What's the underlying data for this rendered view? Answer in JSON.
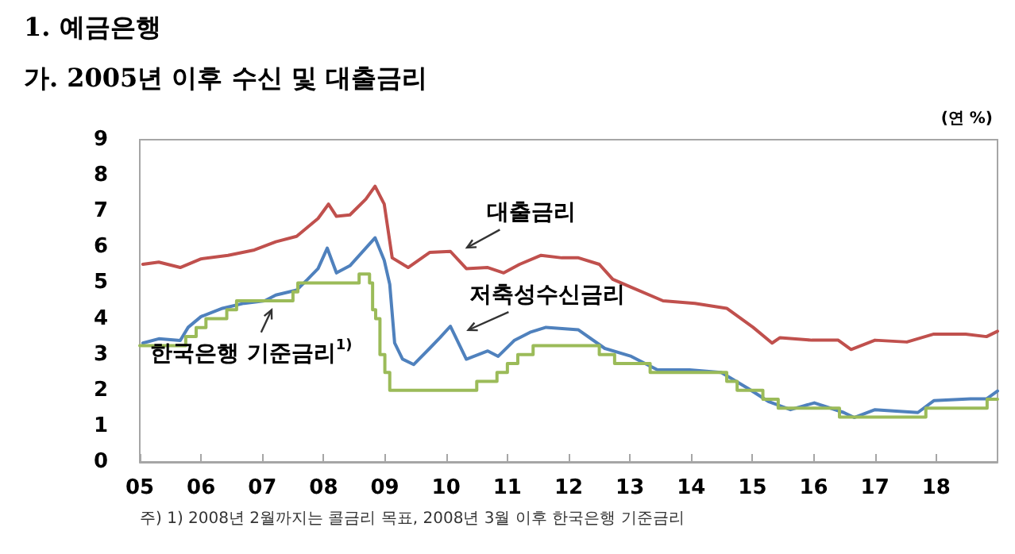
{
  "chart_data": {
    "type": "line",
    "title": "1. 예금은행",
    "subtitle": "가. 2005년 이후 수신 및 대출금리",
    "ylabel": "(연 %)",
    "xlim": [
      2005,
      2019
    ],
    "xticks": [
      {
        "value": 2005,
        "label": "05"
      },
      {
        "value": 2006,
        "label": "06"
      },
      {
        "value": 2007,
        "label": "07"
      },
      {
        "value": 2008,
        "label": "08"
      },
      {
        "value": 2009,
        "label": "09"
      },
      {
        "value": 2010,
        "label": "10"
      },
      {
        "value": 2011,
        "label": "11"
      },
      {
        "value": 2012,
        "label": "12"
      },
      {
        "value": 2013,
        "label": "13"
      },
      {
        "value": 2014,
        "label": "14"
      },
      {
        "value": 2015,
        "label": "15"
      },
      {
        "value": 2016,
        "label": "16"
      },
      {
        "value": 2017,
        "label": "17"
      },
      {
        "value": 2018,
        "label": "18"
      }
    ],
    "ylim": [
      0,
      9
    ],
    "yticks": [
      0,
      1,
      2,
      3,
      4,
      5,
      6,
      7,
      8,
      9
    ],
    "grid": false,
    "marker": "none",
    "line_style": "solid",
    "series": [
      {
        "color": "#c0504d",
        "x": [
          2005.05,
          2005.31,
          2005.66,
          2006.0,
          2006.44,
          2006.87,
          2007.22,
          2007.56,
          2007.91,
          2008.08,
          2008.21,
          2008.43,
          2008.69,
          2008.84,
          2008.99,
          2009.12,
          2009.38,
          2009.73,
          2010.07,
          2010.33,
          2010.68,
          2010.94,
          2011.2,
          2011.55,
          2011.89,
          2012.16,
          2012.5,
          2012.72,
          2013.02,
          2013.54,
          2014.06,
          2014.58,
          2015.01,
          2015.32,
          2015.45,
          2015.97,
          2016.4,
          2016.61,
          2017.0,
          2017.52,
          2017.96,
          2018.48,
          2018.82,
          2019.0
        ],
        "values": [
          5.52,
          5.58,
          5.43,
          5.67,
          5.77,
          5.92,
          6.15,
          6.3,
          6.8,
          7.2,
          6.86,
          6.9,
          7.34,
          7.7,
          7.2,
          5.7,
          5.43,
          5.85,
          5.88,
          5.4,
          5.43,
          5.28,
          5.52,
          5.77,
          5.7,
          5.7,
          5.52,
          5.1,
          4.88,
          4.5,
          4.43,
          4.29,
          3.76,
          3.32,
          3.47,
          3.4,
          3.4,
          3.14,
          3.4,
          3.35,
          3.57,
          3.57,
          3.5,
          3.65
        ]
      },
      {
        "color": "#4f81bd",
        "x": [
          2005.05,
          2005.31,
          2005.66,
          2005.79,
          2006.0,
          2006.35,
          2006.7,
          2007.04,
          2007.22,
          2007.56,
          2007.74,
          2007.91,
          2008.06,
          2008.21,
          2008.43,
          2008.84,
          2008.99,
          2009.08,
          2009.16,
          2009.29,
          2009.47,
          2009.73,
          2009.9,
          2010.07,
          2010.33,
          2010.68,
          2010.85,
          2011.11,
          2011.37,
          2011.63,
          2012.16,
          2012.59,
          2013.02,
          2013.45,
          2013.97,
          2014.49,
          2014.93,
          2015.27,
          2015.62,
          2016.01,
          2016.49,
          2016.66,
          2017.0,
          2017.7,
          2017.96,
          2018.56,
          2018.82,
          2019.0
        ],
        "values": [
          3.32,
          3.44,
          3.39,
          3.76,
          4.06,
          4.29,
          4.43,
          4.5,
          4.66,
          4.8,
          5.1,
          5.4,
          5.97,
          5.28,
          5.48,
          6.26,
          5.63,
          4.96,
          3.32,
          2.87,
          2.72,
          3.17,
          3.47,
          3.79,
          2.87,
          3.1,
          2.95,
          3.39,
          3.62,
          3.76,
          3.69,
          3.17,
          2.95,
          2.57,
          2.57,
          2.5,
          2.05,
          1.68,
          1.46,
          1.65,
          1.38,
          1.24,
          1.46,
          1.38,
          1.71,
          1.76,
          1.76,
          1.98
        ]
      },
      {
        "type": "step",
        "color": "#9bbb59",
        "x": [
          2005.0,
          2005.75,
          2005.92,
          2006.08,
          2006.42,
          2006.58,
          2007.5,
          2007.58,
          2008.58,
          2008.75,
          2008.8,
          2008.85,
          2008.92,
          2009.0,
          2009.08,
          2010.5,
          2010.83,
          2011.0,
          2011.17,
          2011.42,
          2012.5,
          2012.75,
          2013.33,
          2014.58,
          2014.75,
          2015.17,
          2015.42,
          2016.42,
          2017.83,
          2018.83,
          2019.0
        ],
        "values": [
          3.25,
          3.5,
          3.75,
          4.0,
          4.25,
          4.5,
          4.75,
          5.0,
          5.25,
          5.0,
          4.25,
          4.0,
          3.0,
          2.5,
          2.0,
          2.25,
          2.5,
          2.75,
          3.0,
          3.25,
          3.0,
          2.75,
          2.5,
          2.25,
          2.0,
          1.75,
          1.5,
          1.25,
          1.5,
          1.75,
          1.75
        ]
      }
    ],
    "annotations": [
      "대출금리",
      "저축성수신금리",
      "한국은행 기준금리$^{1)}$",
      "주) 1) 2008년 2월까지는 콜금리 목표, 2008년 3월 이후 한국은행 기준금리"
    ]
  }
}
